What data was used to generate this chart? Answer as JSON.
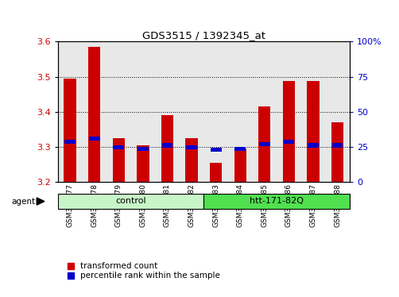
{
  "title": "GDS3515 / 1392345_at",
  "samples": [
    "GSM313577",
    "GSM313578",
    "GSM313579",
    "GSM313580",
    "GSM313581",
    "GSM313582",
    "GSM313583",
    "GSM313584",
    "GSM313585",
    "GSM313586",
    "GSM313587",
    "GSM313588"
  ],
  "red_values": [
    3.495,
    3.585,
    3.325,
    3.305,
    3.39,
    3.325,
    3.255,
    3.295,
    3.415,
    3.488,
    3.488,
    3.37
  ],
  "blue_values": [
    3.315,
    3.325,
    3.3,
    3.295,
    3.305,
    3.3,
    3.292,
    3.295,
    3.308,
    3.315,
    3.305,
    3.305
  ],
  "y_min": 3.2,
  "y_max": 3.6,
  "y_ticks": [
    3.2,
    3.3,
    3.4,
    3.5,
    3.6
  ],
  "y2_ticks": [
    0,
    25,
    50,
    75,
    100
  ],
  "y2_tick_labels": [
    "0",
    "25",
    "50",
    "75",
    "100%"
  ],
  "groups": [
    {
      "label": "control",
      "start": 0,
      "end": 5,
      "color": "#c8f5c8"
    },
    {
      "label": "htt-171-82Q",
      "start": 6,
      "end": 11,
      "color": "#50e050"
    }
  ],
  "agent_label": "agent",
  "bar_width": 0.5,
  "red_color": "#cc0000",
  "blue_color": "#0000cc",
  "background_plot": "#e8e8e8",
  "legend_red": "transformed count",
  "legend_blue": "percentile rank within the sample"
}
